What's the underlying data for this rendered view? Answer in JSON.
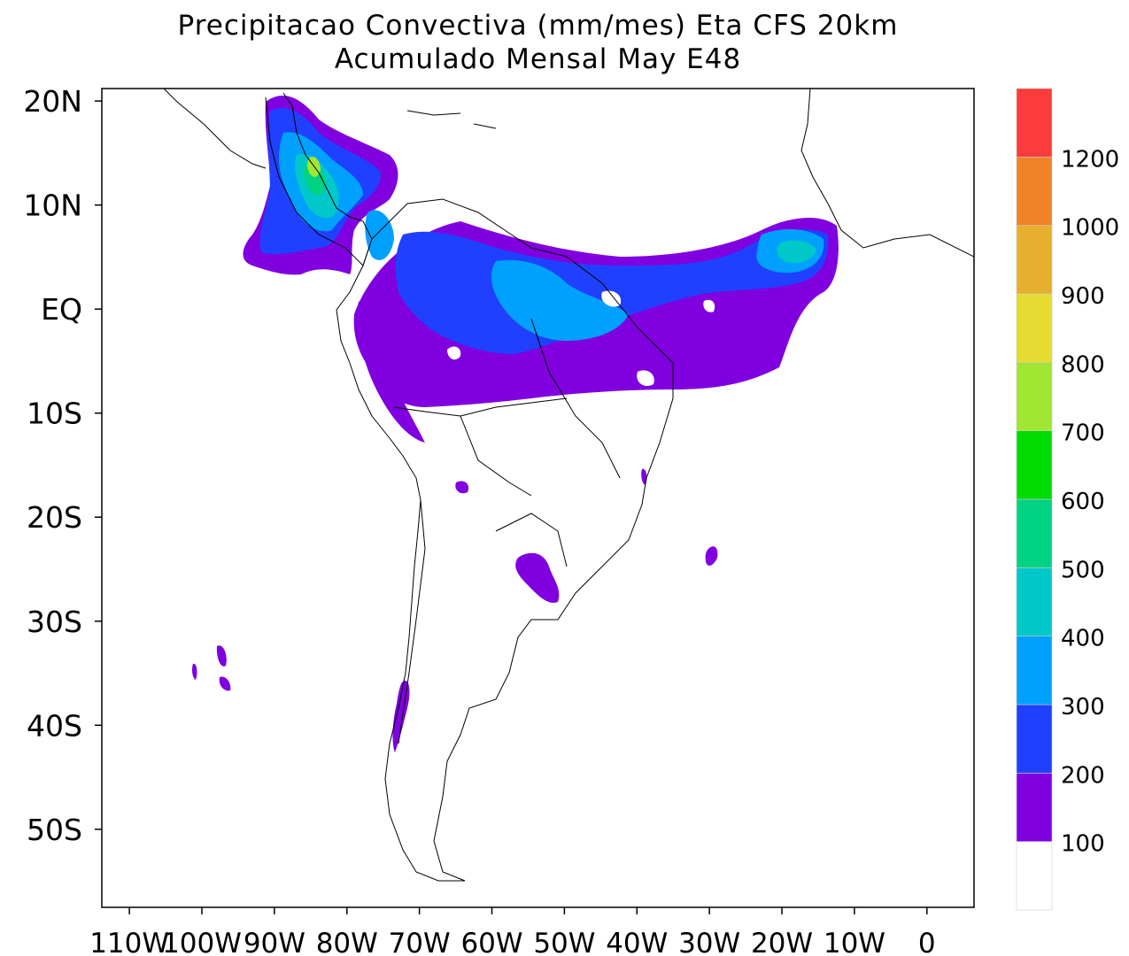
{
  "title_line1": "Precipitacao Convectiva (mm/mes) Eta CFS 20km",
  "title_line2": "Acumulado Mensal May  E48",
  "lon_axis_ticks": [
    {
      "label": "110W",
      "value": -110
    },
    {
      "label": "100W",
      "value": -100
    },
    {
      "label": "90W",
      "value": -90
    },
    {
      "label": "80W",
      "value": -80
    },
    {
      "label": "70W",
      "value": -70
    },
    {
      "label": "60W",
      "value": -60
    },
    {
      "label": "50W",
      "value": -50
    },
    {
      "label": "40W",
      "value": -40
    },
    {
      "label": "30W",
      "value": -30
    },
    {
      "label": "20W",
      "value": -20
    },
    {
      "label": "10W",
      "value": -10
    },
    {
      "label": "0",
      "value": 0
    }
  ],
  "lat_axis_ticks": [
    {
      "label": "20N",
      "value": 20
    },
    {
      "label": "10N",
      "value": 10
    },
    {
      "label": "EQ",
      "value": 0
    },
    {
      "label": "10S",
      "value": -10
    },
    {
      "label": "20S",
      "value": -20
    },
    {
      "label": "30S",
      "value": -30
    },
    {
      "label": "40S",
      "value": -40
    },
    {
      "label": "50S",
      "value": -50
    }
  ],
  "extent": {
    "lon": [
      -113.8,
      6.5
    ],
    "lat": [
      -57.5,
      21.2
    ]
  },
  "colorbar": {
    "bins": [
      {
        "color": "#ffffff"
      },
      {
        "color": "#8000e0",
        "lower": "100"
      },
      {
        "color": "#2040ff",
        "lower": "200"
      },
      {
        "color": "#00a0ff",
        "lower": "300"
      },
      {
        "color": "#00c8c8",
        "lower": "400"
      },
      {
        "color": "#00d284",
        "lower": "500"
      },
      {
        "color": "#00dc00",
        "lower": "600"
      },
      {
        "color": "#a0e632",
        "lower": "700"
      },
      {
        "color": "#e6dc32",
        "lower": "800"
      },
      {
        "color": "#e6af2d",
        "lower": "900"
      },
      {
        "color": "#f08228",
        "lower": "1000"
      },
      {
        "color": "#fa3c3c",
        "lower": "1200"
      }
    ]
  },
  "colors": {
    "c100": "#8000e0",
    "c200": "#2040ff",
    "c300": "#00a0ff",
    "c400": "#00c8c8",
    "c500": "#00d284",
    "c700": "#a0e632"
  }
}
